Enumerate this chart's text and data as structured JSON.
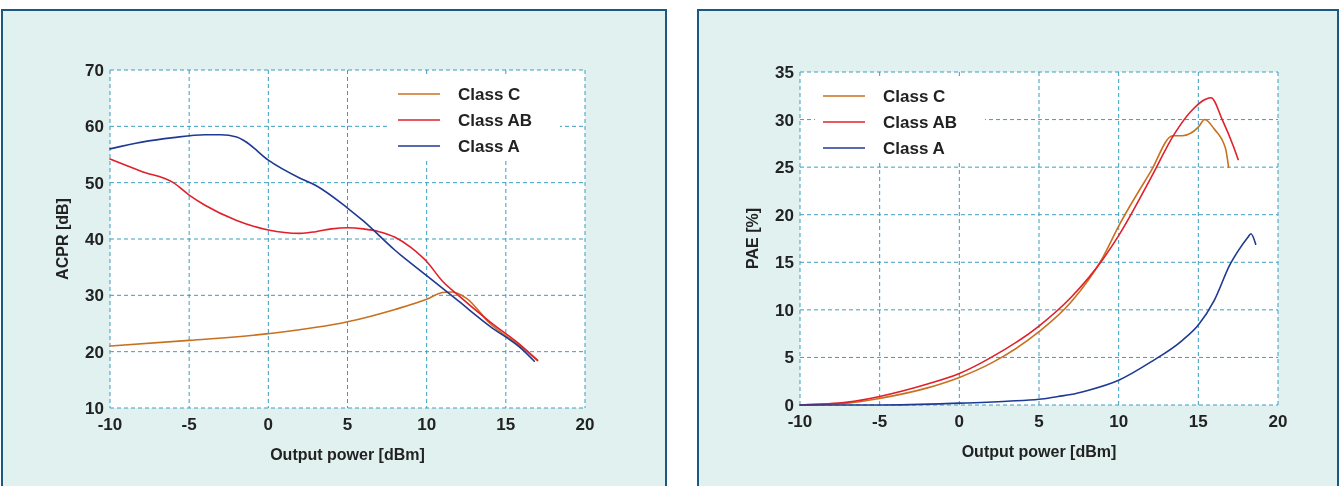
{
  "chart_data": [
    {
      "type": "line",
      "xlabel": "Output power [dBm]",
      "ylabel": "ACPR [dB]",
      "xlim": [
        -10,
        20
      ],
      "xticks": [
        -10,
        -5,
        0,
        5,
        10,
        15,
        20
      ],
      "ylim": [
        10,
        70
      ],
      "yticks": [
        10,
        20,
        30,
        40,
        50,
        60,
        70
      ],
      "grid": true,
      "legend": "top right",
      "series": [
        {
          "name": "Class C",
          "color": "#c8701e",
          "x": [
            -10,
            -5,
            0,
            5,
            8,
            10,
            11,
            11.6,
            12.5,
            14,
            16,
            17
          ],
          "values": [
            21,
            22,
            23.2,
            25.3,
            27.5,
            29.3,
            30.5,
            30.6,
            29.5,
            25,
            20.8,
            18.4
          ]
        },
        {
          "name": "Class AB",
          "color": "#e0202a",
          "x": [
            -10,
            -8,
            -6,
            -5,
            -4,
            -2,
            0,
            2,
            3,
            4,
            5,
            6,
            7,
            8,
            9,
            10,
            11,
            12,
            14,
            16,
            17
          ],
          "values": [
            54.2,
            52,
            50,
            47.8,
            46,
            43.3,
            41.6,
            41,
            41.3,
            41.8,
            42,
            41.8,
            41.3,
            40.3,
            38.5,
            36,
            32.5,
            30,
            25.3,
            21,
            18.5
          ]
        },
        {
          "name": "Class A",
          "color": "#1f3a93",
          "x": [
            -10,
            -8,
            -6,
            -4,
            -3,
            -2,
            -1.5,
            0,
            2,
            3,
            5,
            6,
            8,
            10,
            12,
            14,
            16,
            16.8
          ],
          "values": [
            56,
            57.2,
            58,
            58.5,
            58.5,
            58.1,
            57.4,
            54,
            50.8,
            49.5,
            45.5,
            43.2,
            38,
            33.5,
            29,
            24.5,
            20.5,
            18.3
          ]
        }
      ]
    },
    {
      "type": "line",
      "xlabel": "Output power [dBm]",
      "ylabel": "PAE [%]",
      "xlim": [
        -10,
        20
      ],
      "xticks": [
        -10,
        -5,
        0,
        5,
        10,
        15,
        20
      ],
      "ylim": [
        0,
        35
      ],
      "yticks": [
        0,
        5,
        10,
        15,
        20,
        25,
        30,
        35
      ],
      "grid": true,
      "legend": "top left",
      "series": [
        {
          "name": "Class C",
          "color": "#c8701e",
          "x": [
            -10,
            -7,
            -5,
            -2,
            0,
            2,
            5,
            7,
            9,
            10,
            12,
            13.4,
            14,
            15,
            15.4,
            16,
            16.7,
            16.9
          ],
          "values": [
            0,
            0.2,
            0.7,
            1.8,
            2.9,
            4.4,
            7.7,
            10.8,
            15.5,
            18.8,
            24.5,
            28.3,
            28.3,
            29.2,
            30,
            29,
            27,
            25
          ]
        },
        {
          "name": "Class AB",
          "color": "#e0202a",
          "x": [
            -10,
            -7,
            -5,
            -2,
            0,
            2,
            5,
            7,
            9,
            10,
            12,
            13.5,
            14.5,
            15.8,
            16.5,
            17.2,
            17.5
          ],
          "values": [
            0,
            0.3,
            0.9,
            2.2,
            3.3,
            5,
            8.3,
            11.3,
            15.3,
            17.8,
            23.8,
            28.5,
            30.8,
            32.3,
            30,
            27.2,
            25.8
          ]
        },
        {
          "name": "Class A",
          "color": "#1f3a93",
          "x": [
            -10,
            -5,
            0,
            3,
            5,
            6.2,
            7,
            8,
            10,
            12,
            14,
            15,
            16,
            17,
            17.5,
            18.1,
            18.3,
            18.6
          ],
          "values": [
            0,
            0,
            0.2,
            0.4,
            0.6,
            0.9,
            1.1,
            1.5,
            2.6,
            4.5,
            6.8,
            8.4,
            11,
            14.8,
            16.2,
            17.6,
            18,
            16.9
          ]
        }
      ]
    }
  ]
}
